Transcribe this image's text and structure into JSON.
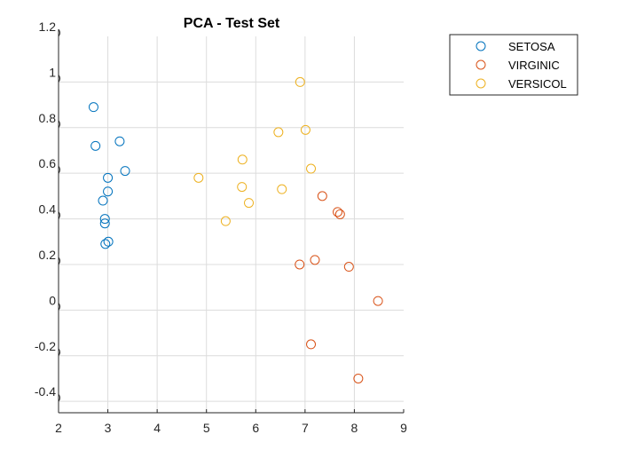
{
  "chart_data": {
    "type": "scatter",
    "title": "PCA - Test Set",
    "xlabel": "",
    "ylabel": "",
    "xlim": [
      2,
      9
    ],
    "ylim": [
      -0.45,
      1.2
    ],
    "xticks": [
      2,
      3,
      4,
      5,
      6,
      7,
      8,
      9
    ],
    "yticks": [
      -0.4,
      -0.2,
      0,
      0.2,
      0.4,
      0.6,
      0.8,
      1,
      1.2
    ],
    "ytick_labels": [
      "-0.4",
      "-0.2",
      "0",
      "0.2",
      "0.4",
      "0.6",
      "0.8",
      "1",
      "1.2"
    ],
    "xtick_labels": [
      "2",
      "3",
      "4",
      "5",
      "6",
      "7",
      "8",
      "9"
    ],
    "grid": true,
    "legend_position": "outside-top-right",
    "marker": "open-circle",
    "series": [
      {
        "name": "SETOSA",
        "color": "#0072BD",
        "points": [
          [
            2.71,
            0.89
          ],
          [
            2.75,
            0.72
          ],
          [
            3.24,
            0.74
          ],
          [
            3.35,
            0.61
          ],
          [
            3.0,
            0.58
          ],
          [
            3.0,
            0.52
          ],
          [
            2.9,
            0.48
          ],
          [
            2.94,
            0.4
          ],
          [
            2.94,
            0.38
          ],
          [
            2.95,
            0.29
          ],
          [
            3.01,
            0.3
          ]
        ]
      },
      {
        "name": "VIRGINIC",
        "color": "#D95319",
        "points": [
          [
            7.35,
            0.5
          ],
          [
            7.66,
            0.43
          ],
          [
            7.71,
            0.42
          ],
          [
            7.2,
            0.22
          ],
          [
            6.89,
            0.2
          ],
          [
            7.89,
            0.19
          ],
          [
            8.48,
            0.04
          ],
          [
            7.12,
            -0.15
          ],
          [
            8.08,
            -0.3
          ]
        ]
      },
      {
        "name": "VERSICOL",
        "color": "#EDB120",
        "points": [
          [
            6.9,
            1.0
          ],
          [
            7.01,
            0.79
          ],
          [
            6.46,
            0.78
          ],
          [
            5.73,
            0.66
          ],
          [
            7.12,
            0.62
          ],
          [
            4.84,
            0.58
          ],
          [
            5.72,
            0.54
          ],
          [
            6.53,
            0.53
          ],
          [
            5.86,
            0.47
          ],
          [
            5.39,
            0.39
          ]
        ]
      }
    ]
  }
}
